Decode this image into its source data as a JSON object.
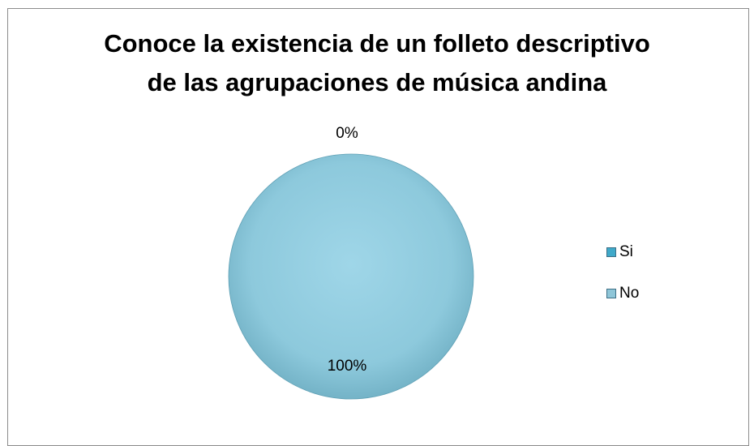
{
  "chart_data": {
    "type": "pie",
    "title_lines": [
      "Conoce la existencia de un folleto descriptivo",
      "de las agrupaciones de música andina"
    ],
    "categories": [
      "Si",
      "No"
    ],
    "values": [
      0,
      100
    ],
    "data_labels": [
      "0%",
      "100%"
    ],
    "colors": [
      "#3fa9c9",
      "#8fc6d8"
    ],
    "legend_position": "right"
  }
}
